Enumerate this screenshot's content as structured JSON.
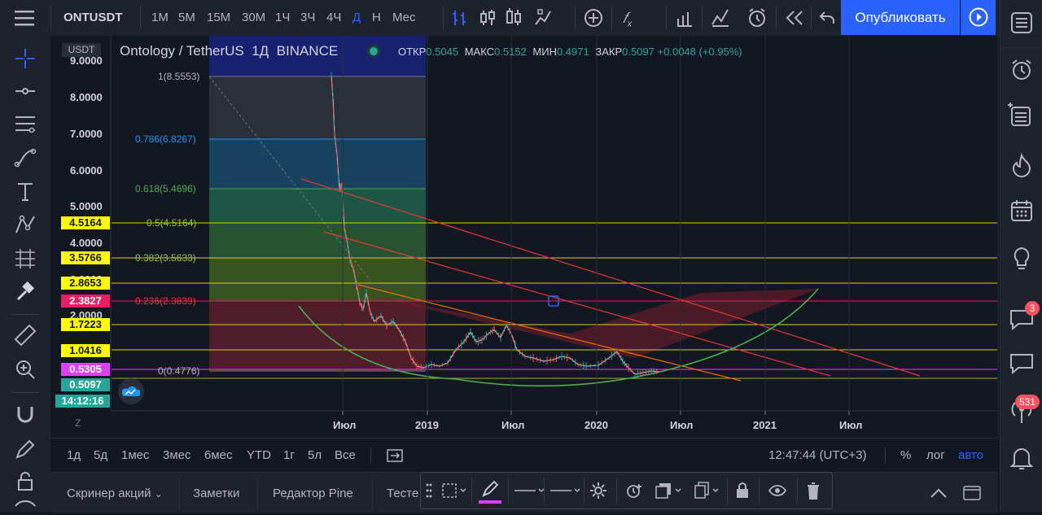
{
  "toolbar": {
    "symbol": "ONTUSDT",
    "intervals": [
      "1М",
      "5М",
      "15М",
      "30М",
      "1Ч",
      "3Ч",
      "4Ч",
      "Д",
      "Н",
      "Мес"
    ],
    "active_interval": "Д",
    "publish_label": "Опубликовать"
  },
  "legend": {
    "currency_tag": "USDT",
    "title": "Ontology / TetherUS  1Д  BINANCE",
    "open_label": "ОТКР",
    "open_value": "0.5045",
    "high_label": "МАКС",
    "high_value": "0.5152",
    "low_label": "МИН",
    "low_value": "0.4971",
    "close_label": "ЗАКР",
    "close_value": "0.5097",
    "change": "+0.0048 (+0.95%)"
  },
  "price_axis": [
    "9.0000",
    "8.0000",
    "7.0000",
    "6.0000",
    "5.0000",
    "4.0000",
    "3.0000",
    "2.0000"
  ],
  "price_boxes": {
    "p4516": "4.5164",
    "p3576": "3.5766",
    "p2865": "2.8653",
    "p2382": "2.3827",
    "p1722": "1.7223",
    "p1041": "1.0416",
    "p0530": "0.5305",
    "p0509": "0.5097",
    "time": "14:12:16"
  },
  "fib": {
    "l1": "1(8.5553)",
    "l786": "0.786(6.8267)",
    "l618": "0.618(5.4696)",
    "l5": "0.5(4.5164)",
    "l382": "0.382(3.5633)",
    "l236": "0.236(2.3839)",
    "l0": "0(0.4776)"
  },
  "time_axis": [
    "Июл",
    "2019",
    "Июл",
    "2020",
    "Июл",
    "2021",
    "Июл"
  ],
  "tz_marker": "Z",
  "range_bar": {
    "ranges": [
      "1д",
      "5д",
      "1мес",
      "3мес",
      "6мес",
      "YTD",
      "1г",
      "5л",
      "Все"
    ],
    "clock": "12:47:44 (UTC+3)",
    "percent": "%",
    "log": "лог",
    "auto": "авто"
  },
  "bottom_tabs": [
    "Скринер акций",
    "Заметки",
    "Редактор Pine",
    "Тесте"
  ],
  "badges": {
    "alerts": "3",
    "notifications": "531"
  },
  "colors": {
    "accent": "#2962ff",
    "up": "#26a69a",
    "down": "#ef5350",
    "level_yellow": "#ffff00",
    "level_magenta": "#e91e63",
    "curve": "#4caf50"
  }
}
